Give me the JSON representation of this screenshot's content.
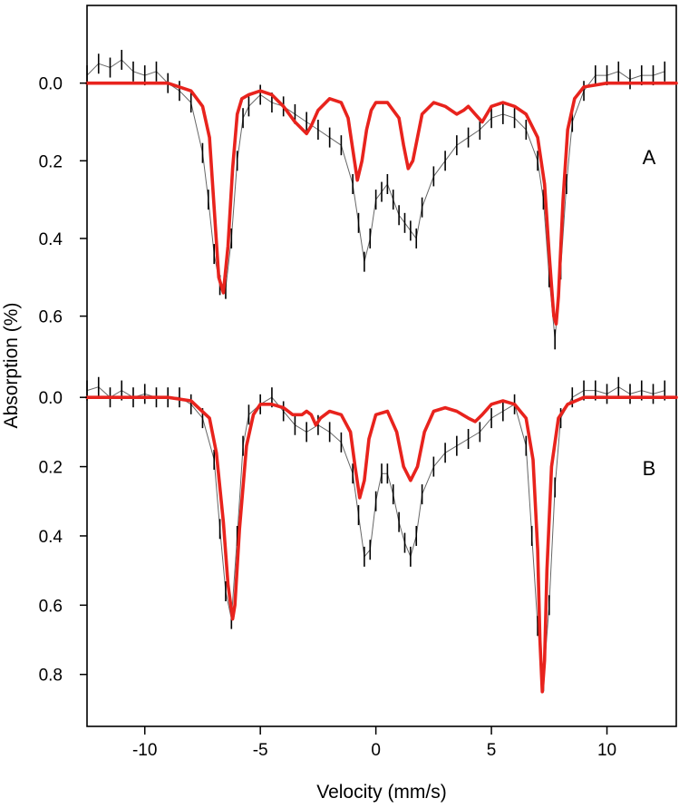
{
  "chart_data": {
    "type": "line",
    "xlabel": "Velocity (mm/s)",
    "ylabel": "Absorption (%)",
    "xlim": [
      -12.5,
      13
    ],
    "x_ticks": [
      -10,
      -5,
      0,
      5,
      10
    ],
    "colors": {
      "data": "#000000",
      "fit": "#e8231d",
      "frame": "#000000"
    },
    "panels": [
      {
        "label": "A",
        "ylim": [
          0.72,
          -0.2
        ],
        "y_ticks": [
          0.0,
          0.2,
          0.4,
          0.6
        ],
        "y_tick_labels": [
          "0.0",
          "0.2",
          "0.4",
          "0.6"
        ],
        "series": [
          {
            "role": "measured",
            "x": [
              -12.5,
              -12,
              -11.5,
              -11,
              -10.5,
              -10,
              -9.5,
              -9,
              -8.5,
              -8,
              -7.5,
              -7.25,
              -7,
              -6.75,
              -6.5,
              -6.25,
              -6,
              -5.75,
              -5.5,
              -5,
              -4.5,
              -4,
              -3.5,
              -3,
              -2.5,
              -2,
              -1.5,
              -1,
              -0.75,
              -0.5,
              -0.25,
              0,
              0.25,
              0.5,
              0.75,
              1,
              1.25,
              1.5,
              1.75,
              2,
              2.5,
              3,
              3.5,
              4,
              4.5,
              5,
              5.5,
              6,
              6.5,
              7,
              7.25,
              7.5,
              7.75,
              8,
              8.25,
              8.5,
              9,
              9.5,
              10,
              10.5,
              11,
              11.5,
              12,
              12.5
            ],
            "y": [
              -0.02,
              -0.05,
              -0.04,
              -0.06,
              -0.03,
              -0.02,
              -0.03,
              0.0,
              0.02,
              0.05,
              0.18,
              0.3,
              0.44,
              0.52,
              0.53,
              0.4,
              0.2,
              0.09,
              0.06,
              0.03,
              0.05,
              0.06,
              0.08,
              0.1,
              0.12,
              0.14,
              0.16,
              0.26,
              0.36,
              0.46,
              0.4,
              0.3,
              0.28,
              0.26,
              0.3,
              0.34,
              0.36,
              0.38,
              0.4,
              0.32,
              0.24,
              0.2,
              0.16,
              0.14,
              0.12,
              0.09,
              0.08,
              0.09,
              0.12,
              0.2,
              0.3,
              0.5,
              0.66,
              0.48,
              0.26,
              0.1,
              0.02,
              -0.02,
              -0.02,
              -0.03,
              -0.01,
              -0.02,
              -0.02,
              -0.03
            ]
          },
          {
            "role": "fit",
            "x": [
              -12.5,
              -9,
              -8,
              -7.5,
              -7.2,
              -7,
              -6.8,
              -6.6,
              -6.4,
              -6.2,
              -6,
              -5.8,
              -5.5,
              -5,
              -4.5,
              -4,
              -3.5,
              -3,
              -2.8,
              -2.5,
              -2,
              -1.5,
              -1.2,
              -1,
              -0.8,
              -0.6,
              -0.4,
              -0.2,
              0,
              0.5,
              1,
              1.2,
              1.4,
              1.6,
              1.8,
              2,
              2.5,
              3,
              3.5,
              3.8,
              4,
              4.3,
              4.6,
              5,
              5.5,
              6,
              6.5,
              7,
              7.3,
              7.5,
              7.7,
              7.8,
              7.9,
              8.1,
              8.3,
              8.6,
              9,
              10,
              13
            ],
            "y": [
              0.0,
              0.0,
              0.02,
              0.06,
              0.14,
              0.32,
              0.5,
              0.54,
              0.42,
              0.22,
              0.08,
              0.04,
              0.03,
              0.02,
              0.03,
              0.06,
              0.1,
              0.13,
              0.11,
              0.07,
              0.04,
              0.05,
              0.09,
              0.17,
              0.25,
              0.2,
              0.12,
              0.07,
              0.05,
              0.05,
              0.09,
              0.16,
              0.22,
              0.2,
              0.14,
              0.08,
              0.05,
              0.06,
              0.08,
              0.07,
              0.06,
              0.08,
              0.1,
              0.06,
              0.05,
              0.06,
              0.08,
              0.14,
              0.26,
              0.44,
              0.6,
              0.62,
              0.55,
              0.3,
              0.12,
              0.04,
              0.01,
              0.0,
              0.0
            ]
          }
        ]
      },
      {
        "label": "B",
        "ylim": [
          0.95,
          -0.1
        ],
        "y_ticks": [
          0.0,
          0.2,
          0.4,
          0.6,
          0.8
        ],
        "y_tick_labels": [
          "0.0",
          "0.2",
          "0.4",
          "0.6",
          "0.8"
        ],
        "series": [
          {
            "role": "measured",
            "x": [
              -12.5,
              -12,
              -11.5,
              -11,
              -10.5,
              -10,
              -9.5,
              -9,
              -8.5,
              -8,
              -7.5,
              -7,
              -6.75,
              -6.5,
              -6.25,
              -6,
              -5.75,
              -5.5,
              -5,
              -4.5,
              -4,
              -3.5,
              -3,
              -2.5,
              -2,
              -1.5,
              -1,
              -0.75,
              -0.5,
              -0.25,
              0,
              0.25,
              0.5,
              0.75,
              1,
              1.25,
              1.5,
              1.75,
              2,
              2.5,
              3,
              3.5,
              4,
              4.5,
              5,
              5.5,
              6,
              6.5,
              6.75,
              7,
              7.25,
              7.5,
              7.75,
              8,
              8.5,
              9,
              9.5,
              10,
              10.5,
              11,
              11.5,
              12,
              12.5
            ],
            "y": [
              -0.02,
              -0.03,
              0.0,
              -0.02,
              0.0,
              -0.01,
              0.0,
              0.0,
              0.0,
              0.02,
              0.06,
              0.18,
              0.38,
              0.56,
              0.64,
              0.4,
              0.14,
              0.05,
              0.02,
              0.0,
              0.04,
              0.08,
              0.1,
              0.08,
              0.1,
              0.13,
              0.22,
              0.34,
              0.46,
              0.44,
              0.3,
              0.22,
              0.22,
              0.28,
              0.36,
              0.42,
              0.46,
              0.4,
              0.28,
              0.2,
              0.16,
              0.14,
              0.12,
              0.1,
              0.06,
              0.04,
              0.02,
              0.14,
              0.4,
              0.66,
              0.82,
              0.6,
              0.26,
              0.06,
              0.0,
              -0.02,
              -0.02,
              -0.01,
              -0.03,
              -0.01,
              -0.02,
              -0.01,
              -0.02
            ]
          },
          {
            "role": "fit",
            "x": [
              -12.5,
              -9,
              -8,
              -7.2,
              -6.9,
              -6.6,
              -6.4,
              -6.2,
              -6.1,
              -5.9,
              -5.6,
              -5.3,
              -5,
              -4.5,
              -4,
              -3.6,
              -3.2,
              -3,
              -2.8,
              -2.6,
              -2.4,
              -2,
              -1.5,
              -1.1,
              -0.9,
              -0.7,
              -0.5,
              -0.3,
              0,
              0.5,
              0.9,
              1.2,
              1.5,
              1.8,
              2.1,
              2.5,
              3,
              3.5,
              4,
              4.3,
              4.6,
              5,
              5.5,
              6,
              6.5,
              6.8,
              7,
              7.1,
              7.2,
              7.3,
              7.4,
              7.6,
              7.9,
              8.3,
              9,
              10,
              13
            ],
            "y": [
              0.0,
              0.0,
              0.01,
              0.06,
              0.16,
              0.36,
              0.54,
              0.64,
              0.6,
              0.38,
              0.14,
              0.05,
              0.02,
              0.02,
              0.03,
              0.05,
              0.05,
              0.04,
              0.05,
              0.08,
              0.06,
              0.04,
              0.05,
              0.1,
              0.2,
              0.29,
              0.24,
              0.12,
              0.05,
              0.04,
              0.1,
              0.2,
              0.24,
              0.2,
              0.1,
              0.04,
              0.03,
              0.04,
              0.06,
              0.07,
              0.05,
              0.02,
              0.01,
              0.02,
              0.06,
              0.18,
              0.44,
              0.7,
              0.85,
              0.76,
              0.5,
              0.2,
              0.06,
              0.02,
              0.0,
              0.0,
              0.0
            ]
          }
        ]
      }
    ]
  }
}
